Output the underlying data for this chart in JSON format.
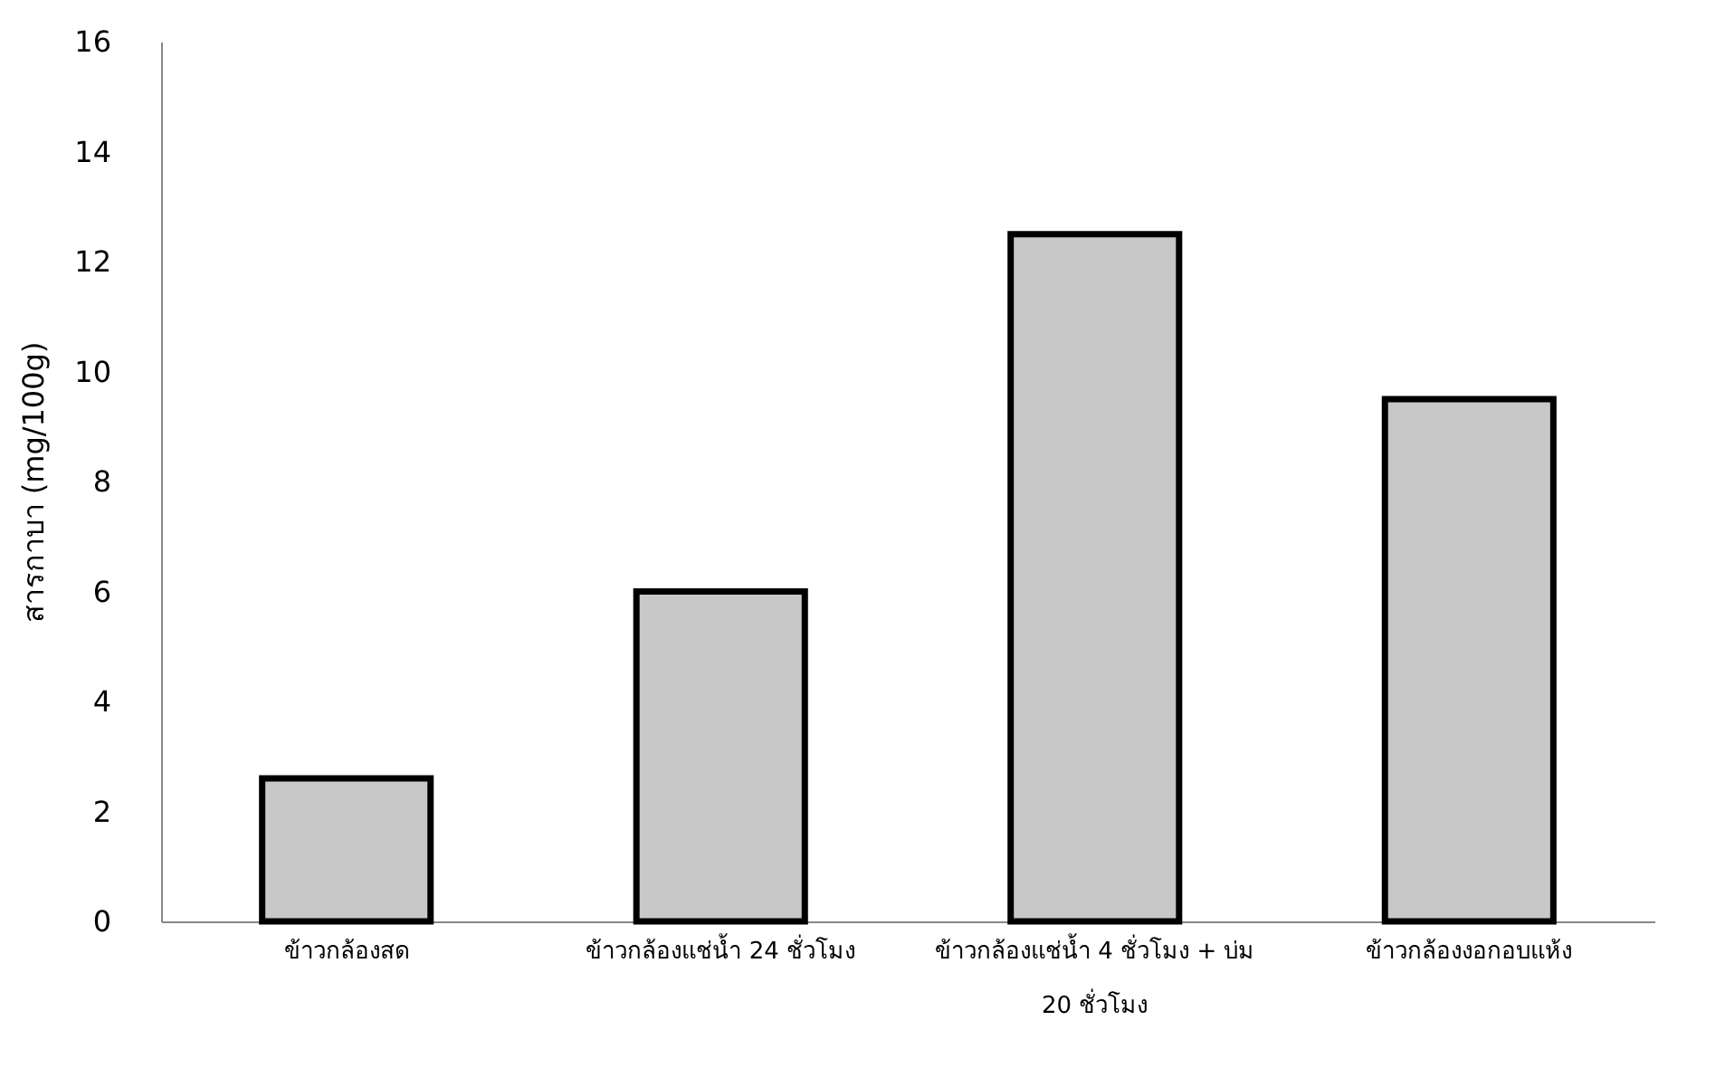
{
  "chart_data": {
    "type": "bar",
    "ylabel": "สารกาบา (mg/100g)",
    "categories": [
      "ข้าวกล้องสด",
      "ข้าวกล้องแช่น้ำ 24 ชั่วโมง",
      "ข้าวกล้องแช่น้ำ 4 ชั่วโมง + บ่ม\n20 ชั่วโมง",
      "ข้าวกล้องงอกอบแห้ง"
    ],
    "values": [
      2.6,
      6.0,
      12.5,
      9.5
    ],
    "color": "#c8c8c8",
    "ylim": [
      0,
      16
    ],
    "yticks": [
      0,
      2,
      4,
      6,
      8,
      10,
      12,
      14,
      16
    ],
    "grid": false
  }
}
